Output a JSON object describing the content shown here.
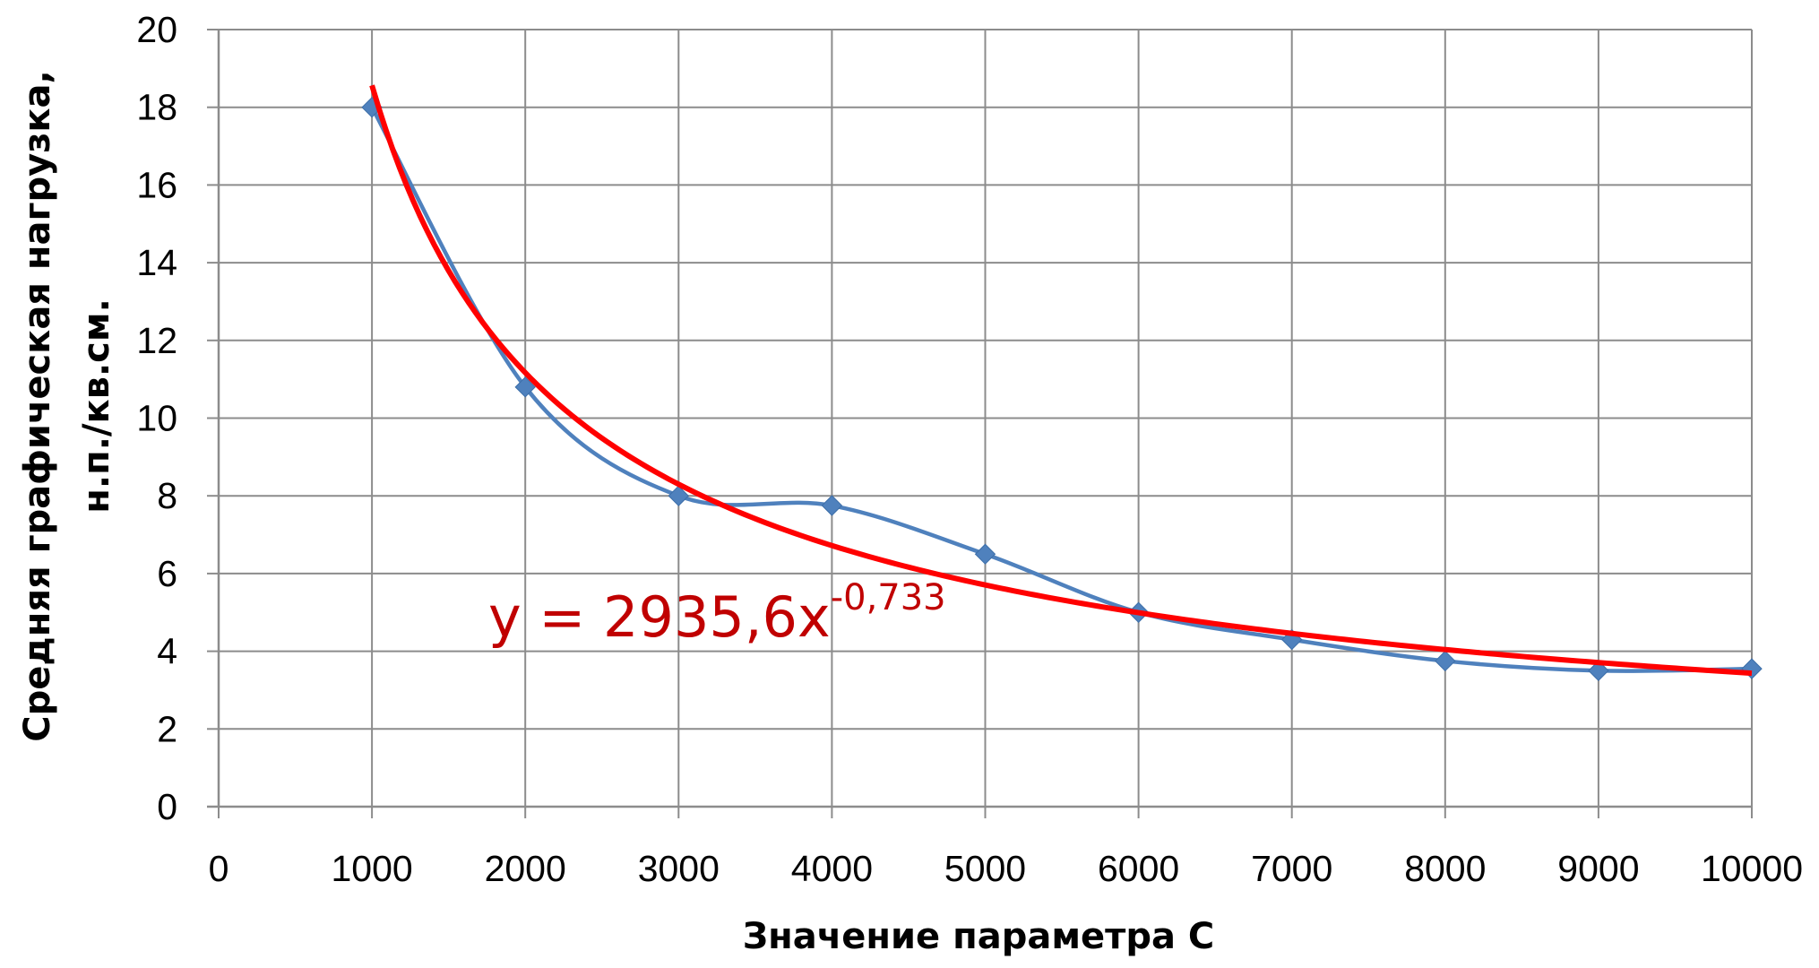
{
  "chart_data": {
    "type": "scatter",
    "title": "",
    "xlabel": "Значение параметра С",
    "ylabel_line1": "Средняя графическая нагрузка,",
    "ylabel_line2": "н.п./кв.см.",
    "xlim": [
      0,
      10000
    ],
    "ylim": [
      0,
      20
    ],
    "x_ticks": [
      0,
      1000,
      2000,
      3000,
      4000,
      5000,
      6000,
      7000,
      8000,
      9000,
      10000
    ],
    "y_ticks": [
      0,
      2,
      4,
      6,
      8,
      10,
      12,
      14,
      16,
      18,
      20
    ],
    "grid": true,
    "legend": "none",
    "series": [
      {
        "x": [
          1000,
          2000,
          3000,
          4000,
          5000,
          6000,
          7000,
          8000,
          9000,
          10000
        ],
        "values": [
          18.0,
          10.8,
          8.0,
          7.75,
          6.5,
          5.0,
          4.3,
          3.75,
          3.5,
          3.55
        ],
        "color": "#4f81bd",
        "marker": "diamond",
        "line": "smooth"
      }
    ],
    "trendline": {
      "type": "power",
      "coefficient": 2935.6,
      "exponent": -0.733,
      "color": "#ff0000",
      "x_range": [
        1000,
        10000
      ],
      "equation_main": "y = 2935,6x",
      "equation_exponent": "-0,733",
      "label_color": "#c00000"
    }
  }
}
